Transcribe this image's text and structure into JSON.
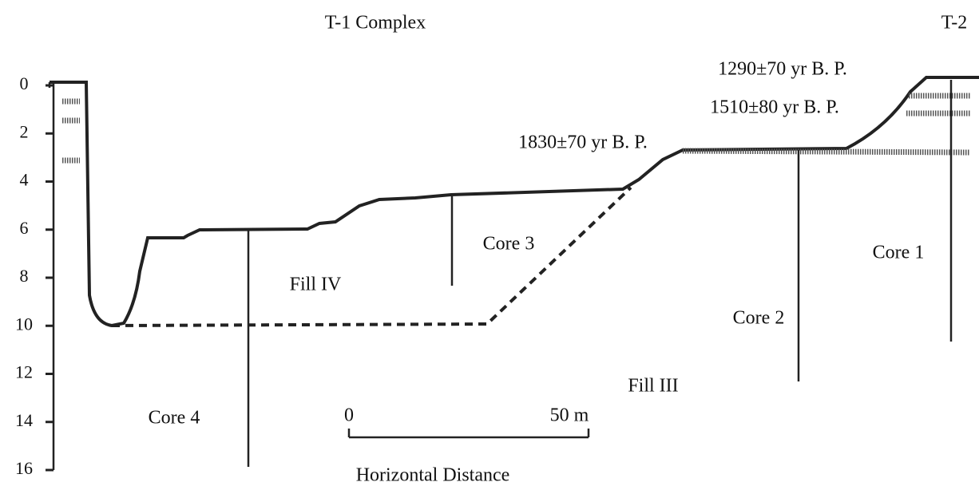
{
  "header": {
    "title_left": "T-1 Complex",
    "title_right": "T-2"
  },
  "dates": [
    "1290±70 yr B. P.",
    "1510±80 yr B. P.",
    "1830±70 yr B. P."
  ],
  "cores": [
    "Core 1",
    "Core 2",
    "Core 3",
    "Core 4"
  ],
  "fills": [
    "Fill III",
    "Fill IV"
  ],
  "scale_bar": {
    "start": "0",
    "end": "50 m",
    "label": "Horizontal Distance"
  },
  "depth_axis": {
    "ylim": [
      0,
      16
    ],
    "ticks": [
      0,
      2,
      4,
      6,
      8,
      10,
      12,
      14,
      16
    ]
  }
}
